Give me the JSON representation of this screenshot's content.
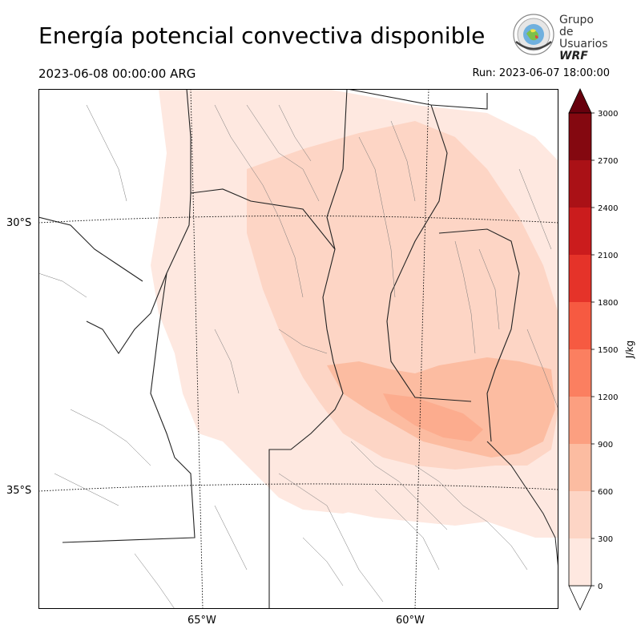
{
  "header": {
    "title": "Energía potencial convectiva disponible",
    "valid_time": "2023-06-08 00:00:00 ARG",
    "run_time": "Run: 2023-06-07 18:00:00"
  },
  "logo": {
    "line1": "Grupo de",
    "line2": "Usuarios",
    "line3": "WRF"
  },
  "map": {
    "lat_labels": [
      "30°S",
      "35°S"
    ],
    "lon_labels": [
      "65°W",
      "60°W"
    ]
  },
  "colorbar": {
    "unit": "J/kg",
    "ticks": [
      "0",
      "300",
      "600",
      "900",
      "1200",
      "1500",
      "1800",
      "2100",
      "2400",
      "2700",
      "3000"
    ],
    "colors": [
      "#fee8e0",
      "#fdd5c5",
      "#fcbca1",
      "#fc9f80",
      "#fb7f60",
      "#f65a41",
      "#e53329",
      "#cb1c1d",
      "#aa1116",
      "#840810"
    ],
    "extend_color": "#67000d"
  }
}
